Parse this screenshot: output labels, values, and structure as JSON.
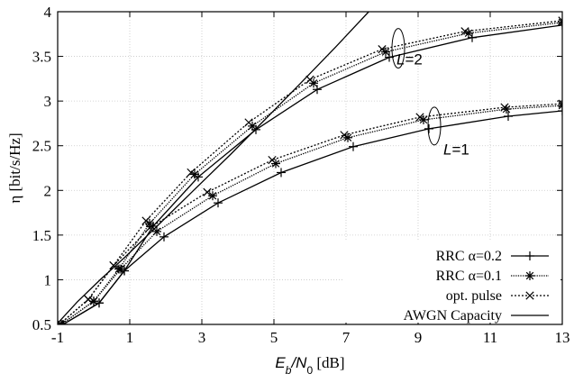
{
  "chart_data": {
    "type": "line",
    "xlabel_main": "E",
    "xlabel_sub1": "b",
    "xlabel_mid": "/N",
    "xlabel_sub2": "0",
    "xlabel_unit": " [dB]",
    "ylabel": "η [bit/s/Hz]",
    "xlim": [
      -1,
      13
    ],
    "ylim": [
      0.5,
      4
    ],
    "xticks": [
      "-1",
      "1",
      "3",
      "5",
      "7",
      "9",
      "11",
      "13"
    ],
    "yticks": [
      "0.5",
      "1",
      "1.5",
      "2",
      "2.5",
      "3",
      "3.5",
      "4"
    ],
    "grid": true,
    "legend_position": "bottom-right",
    "annotations": [
      {
        "label": "L",
        "suffix": "=2",
        "x": 8.4,
        "y": 3.41
      },
      {
        "label": "L",
        "suffix": "=1",
        "x": 9.7,
        "y": 2.4
      }
    ],
    "series": [
      {
        "name": "RRC α=0.2",
        "marker": "plus",
        "dash": "solid",
        "groups": [
          [
            [
              -0.85,
              0.5
            ],
            [
              0.15,
              0.74
            ],
            [
              0.85,
              1.1
            ],
            [
              1.95,
              1.48
            ],
            [
              3.45,
              1.86
            ],
            [
              5.2,
              2.2
            ],
            [
              7.2,
              2.49
            ],
            [
              9.3,
              2.69
            ],
            [
              11.5,
              2.83
            ],
            [
              13,
              2.89
            ]
          ],
          [
            [
              -0.85,
              0.5
            ],
            [
              0.15,
              0.74
            ],
            [
              0.85,
              1.1
            ],
            [
              1.65,
              1.6
            ],
            [
              2.9,
              2.15
            ],
            [
              4.5,
              2.68
            ],
            [
              6.2,
              3.13
            ],
            [
              8.2,
              3.49
            ],
            [
              10.5,
              3.71
            ],
            [
              13,
              3.85
            ]
          ]
        ]
      },
      {
        "name": "RRC α=0.1",
        "marker": "star",
        "dash": "densedot",
        "groups": [
          [
            [
              -0.9,
              0.5
            ],
            [
              0.0,
              0.76
            ],
            [
              0.75,
              1.12
            ],
            [
              1.75,
              1.54
            ],
            [
              3.3,
              1.94
            ],
            [
              5.05,
              2.3
            ],
            [
              7.05,
              2.59
            ],
            [
              9.15,
              2.79
            ],
            [
              11.45,
              2.91
            ],
            [
              13,
              2.95
            ]
          ],
          [
            [
              -0.9,
              0.5
            ],
            [
              0.0,
              0.76
            ],
            [
              0.7,
              1.12
            ],
            [
              1.55,
              1.63
            ],
            [
              2.8,
              2.18
            ],
            [
              4.4,
              2.72
            ],
            [
              6.1,
              3.2
            ],
            [
              8.1,
              3.55
            ],
            [
              10.4,
              3.76
            ],
            [
              13,
              3.88
            ]
          ]
        ]
      },
      {
        "name": "opt. pulse",
        "marker": "cross",
        "dash": "dotted",
        "groups": [
          [
            [
              -0.95,
              0.5
            ],
            [
              -0.15,
              0.78
            ],
            [
              0.55,
              1.16
            ],
            [
              1.55,
              1.58
            ],
            [
              3.15,
              1.98
            ],
            [
              4.95,
              2.34
            ],
            [
              6.95,
              2.62
            ],
            [
              9.05,
              2.82
            ],
            [
              11.4,
              2.93
            ],
            [
              13,
              2.97
            ]
          ],
          [
            [
              -0.95,
              0.5
            ],
            [
              -0.15,
              0.78
            ],
            [
              0.55,
              1.16
            ],
            [
              1.45,
              1.66
            ],
            [
              2.7,
              2.2
            ],
            [
              4.3,
              2.76
            ],
            [
              6.0,
              3.24
            ],
            [
              8.0,
              3.58
            ],
            [
              10.3,
              3.78
            ],
            [
              13,
              3.9
            ]
          ]
        ]
      },
      {
        "name": "AWGN Capacity",
        "marker": "none",
        "dash": "solid",
        "groups": [
          [
            [
              -1.59,
              0
            ],
            [
              -1.03,
              0.5
            ],
            [
              -0.46,
              0.75
            ],
            [
              0.18,
              1.0
            ],
            [
              0.86,
              1.25
            ],
            [
              1.76,
              1.6
            ],
            [
              2.77,
              2.0
            ],
            [
              3.79,
              2.4
            ],
            [
              4.77,
              2.8
            ],
            [
              5.74,
              3.2
            ],
            [
              6.7,
              3.6
            ],
            [
              7.63,
              4.0
            ]
          ]
        ]
      }
    ]
  }
}
